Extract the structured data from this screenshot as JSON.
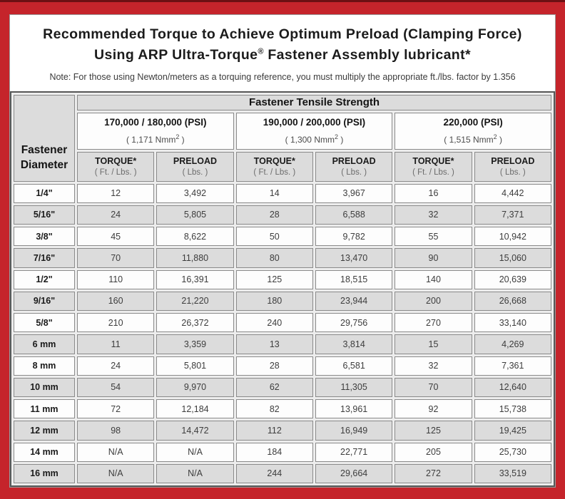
{
  "colors": {
    "frame_red": "#c5242b",
    "frame_dark_strip": "#6d1013",
    "header_gray": "#dcdcdc",
    "row_gray": "#dcdcdc",
    "row_white": "#fdfdfd"
  },
  "title": {
    "line1": "Recommended Torque to Achieve Optimum Preload (Clamping Force)",
    "line2_pre": "Using ARP Ultra-Torque",
    "line2_sup": "®",
    "line2_post": " Fastener Assembly lubricant*"
  },
  "note": "Note: For those using Newton/meters as a torquing reference, you must multiply the appropriate ft./lbs. factor by 1.356",
  "table": {
    "corner_header": {
      "line1": "Fastener",
      "line2": "Diameter"
    },
    "group_header": "Fastener Tensile Strength",
    "strength_groups": [
      {
        "psi": "170,000 / 180,000 (PSI)",
        "nmm_pre": "( 1,171 Nmm",
        "nmm_sup": "2",
        "nmm_post": " )"
      },
      {
        "psi": "190,000 / 200,000 (PSI)",
        "nmm_pre": "( 1,300 Nmm",
        "nmm_sup": "2",
        "nmm_post": " )"
      },
      {
        "psi": "220,000 (PSI)",
        "nmm_pre": "( 1,515 Nmm",
        "nmm_sup": "2",
        "nmm_post": " )"
      }
    ],
    "col_headers": [
      {
        "label": "TORQUE*",
        "sub": "( Ft. / Lbs. )"
      },
      {
        "label": "PRELOAD",
        "sub": "( Lbs. )"
      },
      {
        "label": "TORQUE*",
        "sub": "( Ft. / Lbs. )"
      },
      {
        "label": "PRELOAD",
        "sub": "( Lbs. )"
      },
      {
        "label": "TORQUE*",
        "sub": "( Ft. / Lbs. )"
      },
      {
        "label": "PRELOAD",
        "sub": "( Lbs. )"
      }
    ],
    "rows": [
      {
        "dia": "1/4\"",
        "values": [
          "12",
          "3,492",
          "14",
          "3,967",
          "16",
          "4,442"
        ]
      },
      {
        "dia": "5/16\"",
        "values": [
          "24",
          "5,805",
          "28",
          "6,588",
          "32",
          "7,371"
        ]
      },
      {
        "dia": "3/8\"",
        "values": [
          "45",
          "8,622",
          "50",
          "9,782",
          "55",
          "10,942"
        ]
      },
      {
        "dia": "7/16\"",
        "values": [
          "70",
          "11,880",
          "80",
          "13,470",
          "90",
          "15,060"
        ]
      },
      {
        "dia": "1/2\"",
        "values": [
          "110",
          "16,391",
          "125",
          "18,515",
          "140",
          "20,639"
        ]
      },
      {
        "dia": "9/16\"",
        "values": [
          "160",
          "21,220",
          "180",
          "23,944",
          "200",
          "26,668"
        ]
      },
      {
        "dia": "5/8\"",
        "values": [
          "210",
          "26,372",
          "240",
          "29,756",
          "270",
          "33,140"
        ]
      },
      {
        "dia": "6 mm",
        "values": [
          "11",
          "3,359",
          "13",
          "3,814",
          "15",
          "4,269"
        ]
      },
      {
        "dia": "8 mm",
        "values": [
          "24",
          "5,801",
          "28",
          "6,581",
          "32",
          "7,361"
        ]
      },
      {
        "dia": "10 mm",
        "values": [
          "54",
          "9,970",
          "62",
          "11,305",
          "70",
          "12,640"
        ]
      },
      {
        "dia": "11 mm",
        "values": [
          "72",
          "12,184",
          "82",
          "13,961",
          "92",
          "15,738"
        ]
      },
      {
        "dia": "12 mm",
        "values": [
          "98",
          "14,472",
          "112",
          "16,949",
          "125",
          "19,425"
        ]
      },
      {
        "dia": "14 mm",
        "values": [
          "N/A",
          "N/A",
          "184",
          "22,771",
          "205",
          "25,730"
        ]
      },
      {
        "dia": "16 mm",
        "values": [
          "N/A",
          "N/A",
          "244",
          "29,664",
          "272",
          "33,519"
        ]
      }
    ]
  }
}
